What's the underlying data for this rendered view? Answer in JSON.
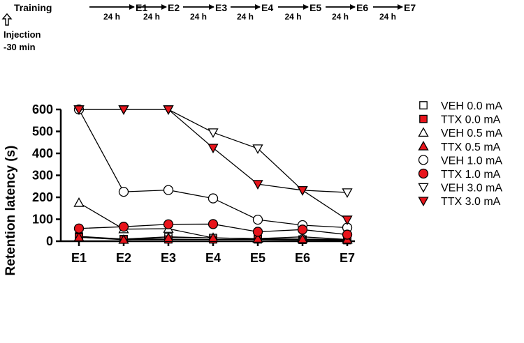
{
  "timeline": {
    "training_label": "Training",
    "interval_label": "24 h",
    "events": [
      "E1",
      "E2",
      "E3",
      "E4",
      "E5",
      "E6",
      "E7"
    ],
    "injection_label": "Injection",
    "injection_time": "-30 min"
  },
  "chart_data": {
    "type": "line",
    "categories": [
      "E1",
      "E2",
      "E3",
      "E4",
      "E5",
      "E6",
      "E7"
    ],
    "ylabel": "Retention latency (s)",
    "ylim": [
      0,
      600
    ],
    "yticks": [
      0,
      100,
      200,
      300,
      400,
      500,
      600
    ],
    "legend_position": "right",
    "series": [
      {
        "name": "VEH 0.0 mA",
        "marker": "square",
        "fill": "#ffffff",
        "values": [
          22,
          10,
          20,
          15,
          10,
          8,
          5
        ]
      },
      {
        "name": "TTX 0.0 mA",
        "marker": "square",
        "fill": "#e8141b",
        "values": [
          18,
          8,
          8,
          8,
          8,
          6,
          5
        ]
      },
      {
        "name": "VEH 0.5 mA",
        "marker": "triangle-up",
        "fill": "#ffffff",
        "values": [
          175,
          55,
          57,
          15,
          12,
          20,
          8
        ]
      },
      {
        "name": "TTX 0.5 mA",
        "marker": "triangle-up",
        "fill": "#e8141b",
        "values": [
          18,
          7,
          15,
          15,
          12,
          10,
          8
        ]
      },
      {
        "name": "VEH 1.0 mA",
        "marker": "circle",
        "fill": "#ffffff",
        "values": [
          600,
          225,
          233,
          195,
          98,
          73,
          62
        ]
      },
      {
        "name": "TTX 1.0 mA",
        "marker": "circle",
        "fill": "#e8141b",
        "values": [
          58,
          66,
          77,
          78,
          43,
          53,
          30
        ]
      },
      {
        "name": "VEH 3.0 mA",
        "marker": "triangle-down",
        "fill": "#ffffff",
        "values": [
          600,
          600,
          600,
          495,
          422,
          232,
          222
        ]
      },
      {
        "name": "TTX 3.0 mA",
        "marker": "triangle-down",
        "fill": "#e8141b",
        "values": [
          600,
          600,
          600,
          425,
          260,
          232,
          98
        ]
      }
    ]
  }
}
